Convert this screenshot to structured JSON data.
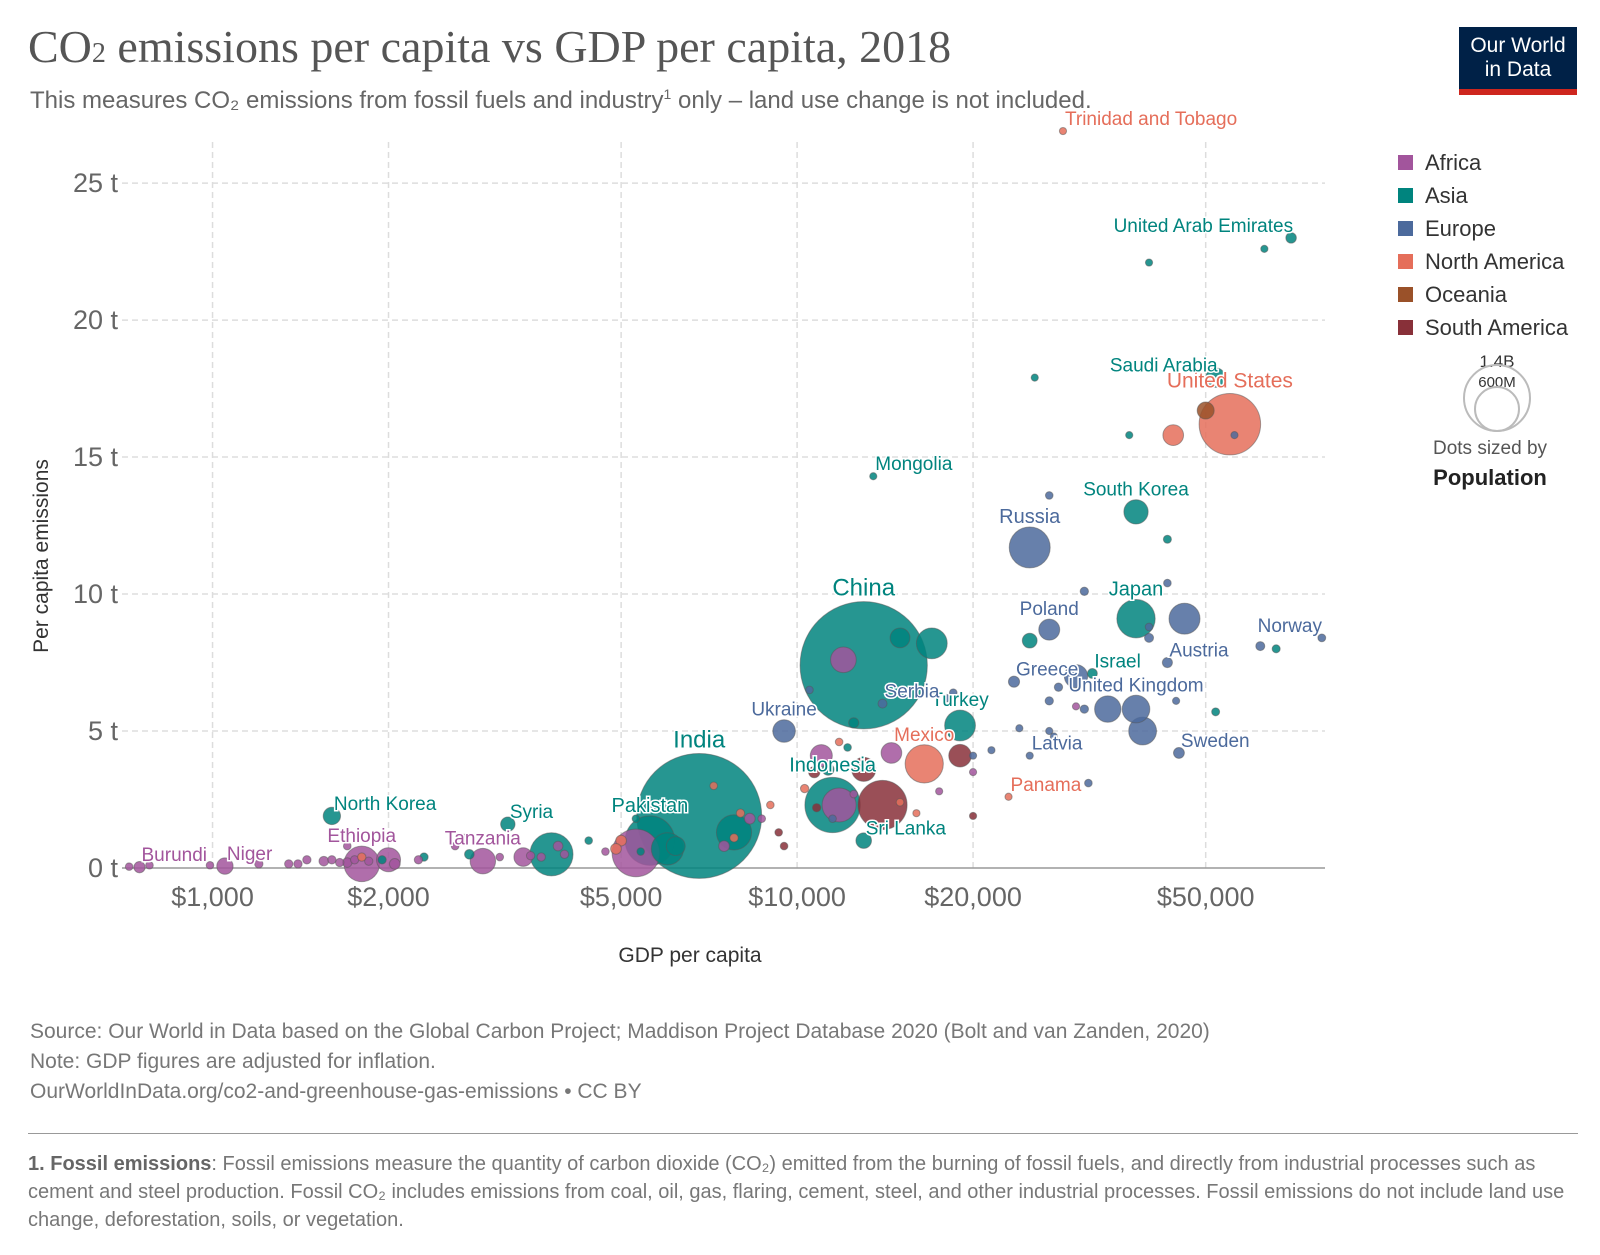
{
  "header": {
    "title": "CO₂ emissions per capita vs GDP per capita, 2018",
    "subtitle_pre": "This measures CO₂ emissions from fossil fuels and industry",
    "subtitle_sup": "1",
    "subtitle_post": " only – land use change is not included.",
    "logo_line1": "Our World",
    "logo_line2": "in Data"
  },
  "legend": {
    "items": [
      {
        "label": "Africa",
        "color": "#a2559c"
      },
      {
        "label": "Asia",
        "color": "#00847e"
      },
      {
        "label": "Europe",
        "color": "#4c6a9c"
      },
      {
        "label": "North America",
        "color": "#e56e5a"
      },
      {
        "label": "Oceania",
        "color": "#9a5129"
      },
      {
        "label": "South America",
        "color": "#883039"
      }
    ],
    "size_big": "1.4B",
    "size_small": "600M",
    "size_note": "Dots sized by",
    "size_metric": "Population"
  },
  "footer": {
    "source": "Source: Our World in Data based on the Global Carbon Project; Maddison Project Database 2020 (Bolt and van Zanden, 2020)",
    "note": "Note: GDP figures are adjusted for inflation.",
    "url": "OurWorldInData.org/co2-and-greenhouse-gas-emissions • CC BY",
    "footnote_label": "1. Fossil emissions",
    "footnote_text": ": Fossil emissions measure the quantity of carbon dioxide (CO₂) emitted from the burning of fossil fuels, and directly from industrial processes such as cement and steel production. Fossil CO₂ includes emissions from coal, oil, gas, flaring, cement, steel, and other industrial processes. Fossil emissions do not include land use change, deforestation, soils, or vegetation."
  },
  "chart_data": {
    "type": "scatter",
    "title": "CO₂ emissions per capita vs GDP per capita, 2018",
    "xlabel": "GDP per capita",
    "ylabel": "Per capita emissions",
    "xscale": "log",
    "xlim": [
      700,
      80000
    ],
    "ylim": [
      0,
      26.5
    ],
    "grid": true,
    "legend_position": "right",
    "x_ticks": [
      {
        "v": 1000,
        "label": "$1,000"
      },
      {
        "v": 2000,
        "label": "$2,000"
      },
      {
        "v": 5000,
        "label": "$5,000"
      },
      {
        "v": 10000,
        "label": "$10,000"
      },
      {
        "v": 20000,
        "label": "$20,000"
      },
      {
        "v": 50000,
        "label": "$50,000"
      }
    ],
    "y_ticks": [
      {
        "v": 0,
        "label": "0 t"
      },
      {
        "v": 5,
        "label": "5 t"
      },
      {
        "v": 10,
        "label": "10 t"
      },
      {
        "v": 15,
        "label": "15 t"
      },
      {
        "v": 20,
        "label": "20 t"
      },
      {
        "v": 25,
        "label": "25 t"
      }
    ],
    "points": [
      {
        "x": 13000,
        "y": 7.4,
        "pop": 1400,
        "region": "Asia",
        "label": "China",
        "lbl_size": 24
      },
      {
        "x": 6800,
        "y": 1.9,
        "pop": 1350,
        "region": "Asia",
        "label": "India",
        "lbl_size": 24
      },
      {
        "x": 55000,
        "y": 16.2,
        "pop": 327,
        "region": "North America",
        "label": "United States",
        "lbl_size": 21
      },
      {
        "x": 11500,
        "y": 2.3,
        "pop": 265,
        "region": "Asia",
        "label": "Indonesia",
        "lbl_size": 20
      },
      {
        "x": 5600,
        "y": 1.0,
        "pop": 212,
        "region": "Asia",
        "label": "Pakistan",
        "lbl_size": 20
      },
      {
        "x": 14000,
        "y": 2.3,
        "pop": 209,
        "region": "South America"
      },
      {
        "x": 5300,
        "y": 0.55,
        "pop": 196,
        "region": "Africa"
      },
      {
        "x": 3800,
        "y": 0.5,
        "pop": 161,
        "region": "Asia"
      },
      {
        "x": 25000,
        "y": 11.7,
        "pop": 145,
        "region": "Europe",
        "label": "Russia",
        "lbl_size": 20
      },
      {
        "x": 16500,
        "y": 3.8,
        "pop": 126,
        "region": "North America",
        "label": "Mexico",
        "lbl_size": 19
      },
      {
        "x": 38000,
        "y": 9.1,
        "pop": 127,
        "region": "Asia",
        "label": "Japan",
        "lbl_size": 20
      },
      {
        "x": 1800,
        "y": 0.15,
        "pop": 109,
        "region": "Africa",
        "label": "Ethiopia",
        "lbl_size": 19
      },
      {
        "x": 7800,
        "y": 1.3,
        "pop": 107,
        "region": "Asia"
      },
      {
        "x": 19000,
        "y": 5.2,
        "pop": 82,
        "region": "Asia",
        "label": "Turkey",
        "lbl_size": 19
      },
      {
        "x": 11800,
        "y": 2.3,
        "pop": 100,
        "region": "Africa"
      },
      {
        "x": 46000,
        "y": 9.1,
        "pop": 83,
        "region": "Europe"
      },
      {
        "x": 17000,
        "y": 8.2,
        "pop": 82,
        "region": "Asia"
      },
      {
        "x": 6000,
        "y": 0.7,
        "pop": 90,
        "region": "Asia"
      },
      {
        "x": 39000,
        "y": 5.0,
        "pop": 67,
        "region": "Europe"
      },
      {
        "x": 38000,
        "y": 5.8,
        "pop": 66,
        "region": "Europe",
        "label": "United Kingdom",
        "lbl_size": 19
      },
      {
        "x": 34000,
        "y": 5.8,
        "pop": 60,
        "region": "Europe"
      },
      {
        "x": 38000,
        "y": 13.0,
        "pop": 51,
        "region": "Asia",
        "label": "South Korea",
        "lbl_size": 19
      },
      {
        "x": 2900,
        "y": 0.25,
        "pop": 56,
        "region": "Africa",
        "label": "Tanzania",
        "lbl_size": 19
      },
      {
        "x": 13000,
        "y": 3.6,
        "pop": 50,
        "region": "South America"
      },
      {
        "x": 9500,
        "y": 5.0,
        "pop": 44,
        "region": "Europe",
        "label": "Ukraine",
        "lbl_size": 19
      },
      {
        "x": 2000,
        "y": 0.3,
        "pop": 50,
        "region": "Africa"
      },
      {
        "x": 12000,
        "y": 7.6,
        "pop": 57,
        "region": "Africa"
      },
      {
        "x": 19000,
        "y": 4.1,
        "pop": 44,
        "region": "South America"
      },
      {
        "x": 30000,
        "y": 7.0,
        "pop": 47,
        "region": "Europe"
      },
      {
        "x": 27000,
        "y": 8.7,
        "pop": 38,
        "region": "Europe",
        "label": "Poland",
        "lbl_size": 19
      },
      {
        "x": 52000,
        "y": 17.9,
        "pop": 33,
        "region": "Asia",
        "label": "Saudi Arabia",
        "lbl_size": 19
      },
      {
        "x": 11000,
        "y": 4.1,
        "pop": 42,
        "region": "Africa"
      },
      {
        "x": 14500,
        "y": 4.2,
        "pop": 37,
        "region": "Africa"
      },
      {
        "x": 15000,
        "y": 8.4,
        "pop": 34,
        "region": "Asia"
      },
      {
        "x": 3400,
        "y": 0.4,
        "pop": 30,
        "region": "Africa"
      },
      {
        "x": 1050,
        "y": 0.07,
        "pop": 23,
        "region": "Africa",
        "label": "Niger",
        "lbl_size": 19
      },
      {
        "x": 750,
        "y": 0.03,
        "pop": 11,
        "region": "Africa",
        "label": "Burundi",
        "lbl_size": 19
      },
      {
        "x": 1600,
        "y": 1.9,
        "pop": 26,
        "region": "Asia",
        "label": "North Korea",
        "lbl_size": 19
      },
      {
        "x": 3200,
        "y": 1.6,
        "pop": 18,
        "region": "Asia",
        "label": "Syria",
        "lbl_size": 19
      },
      {
        "x": 13000,
        "y": 1.0,
        "pop": 21,
        "region": "Asia",
        "label": "Sri Lanka",
        "lbl_size": 19
      },
      {
        "x": 23000,
        "y": 2.6,
        "pop": 4,
        "region": "North America",
        "label": "Panama",
        "lbl_size": 19
      },
      {
        "x": 28500,
        "y": 26.9,
        "pop": 1.4,
        "region": "North America",
        "label": "Trinidad and Tobago",
        "lbl_size": 19
      },
      {
        "x": 70000,
        "y": 23.0,
        "pop": 9.6,
        "region": "Asia",
        "label": "United Arab Emirates",
        "lbl_size": 19
      },
      {
        "x": 13500,
        "y": 14.3,
        "pop": 3.2,
        "region": "Asia",
        "label": "Mongolia",
        "lbl_size": 19
      },
      {
        "x": 79000,
        "y": 8.4,
        "pop": 5.3,
        "region": "Europe",
        "label": "Norway",
        "lbl_size": 19
      },
      {
        "x": 43000,
        "y": 7.5,
        "pop": 8.8,
        "region": "Europe",
        "label": "Austria",
        "lbl_size": 19
      },
      {
        "x": 32000,
        "y": 7.1,
        "pop": 8.4,
        "region": "Asia",
        "label": "Israel",
        "lbl_size": 19
      },
      {
        "x": 23500,
        "y": 6.8,
        "pop": 10.7,
        "region": "Europe",
        "label": "Greece",
        "lbl_size": 19
      },
      {
        "x": 14000,
        "y": 6.0,
        "pop": 7,
        "region": "Europe",
        "label": "Serbia",
        "lbl_size": 19
      },
      {
        "x": 25000,
        "y": 4.1,
        "pop": 1.9,
        "region": "Europe",
        "label": "Latvia",
        "lbl_size": 19
      },
      {
        "x": 45000,
        "y": 4.2,
        "pop": 10.2,
        "region": "Europe",
        "label": "Sweden",
        "lbl_size": 19
      },
      {
        "x": 40000,
        "y": 22.1,
        "pop": 4.1,
        "region": "Asia"
      },
      {
        "x": 63000,
        "y": 22.6,
        "pop": 2.8,
        "region": "Asia"
      },
      {
        "x": 25500,
        "y": 17.9,
        "pop": 4,
        "region": "Asia"
      },
      {
        "x": 37000,
        "y": 15.8,
        "pop": 3,
        "region": "Asia"
      },
      {
        "x": 44000,
        "y": 15.8,
        "pop": 37,
        "region": "North America"
      },
      {
        "x": 50000,
        "y": 16.7,
        "pop": 25,
        "region": "Oceania"
      },
      {
        "x": 56000,
        "y": 15.8,
        "pop": 4,
        "region": "Europe"
      },
      {
        "x": 27000,
        "y": 13.6,
        "pop": 5,
        "region": "Europe"
      },
      {
        "x": 43000,
        "y": 12.0,
        "pop": 5.6,
        "region": "Asia"
      },
      {
        "x": 43000,
        "y": 10.4,
        "pop": 5,
        "region": "Europe"
      },
      {
        "x": 31000,
        "y": 10.1,
        "pop": 6,
        "region": "Europe"
      },
      {
        "x": 25000,
        "y": 8.3,
        "pop": 19,
        "region": "Asia"
      },
      {
        "x": 40000,
        "y": 8.4,
        "pop": 7,
        "region": "Europe"
      },
      {
        "x": 40000,
        "y": 8.8,
        "pop": 5,
        "region": "Europe"
      },
      {
        "x": 62000,
        "y": 8.1,
        "pop": 7,
        "region": "Europe"
      },
      {
        "x": 66000,
        "y": 8.0,
        "pop": 5.6,
        "region": "Asia"
      },
      {
        "x": 28000,
        "y": 6.6,
        "pop": 6,
        "region": "Europe"
      },
      {
        "x": 27000,
        "y": 6.1,
        "pop": 6,
        "region": "Europe"
      },
      {
        "x": 18500,
        "y": 6.4,
        "pop": 5,
        "region": "Europe"
      },
      {
        "x": 18000,
        "y": 6.2,
        "pop": 5,
        "region": "Europe"
      },
      {
        "x": 30000,
        "y": 5.9,
        "pop": 4,
        "region": "Africa"
      },
      {
        "x": 31000,
        "y": 5.8,
        "pop": 6,
        "region": "Europe"
      },
      {
        "x": 52000,
        "y": 5.7,
        "pop": 5.5,
        "region": "Asia"
      },
      {
        "x": 44500,
        "y": 6.1,
        "pop": 4,
        "region": "Europe"
      },
      {
        "x": 27000,
        "y": 5.0,
        "pop": 4,
        "region": "Europe"
      },
      {
        "x": 24000,
        "y": 5.1,
        "pop": 4,
        "region": "Europe"
      },
      {
        "x": 27500,
        "y": 4.8,
        "pop": 4,
        "region": "Europe"
      },
      {
        "x": 31500,
        "y": 3.1,
        "pop": 5,
        "region": "Europe"
      },
      {
        "x": 10500,
        "y": 6.5,
        "pop": 5,
        "region": "Europe"
      },
      {
        "x": 12500,
        "y": 5.3,
        "pop": 9,
        "region": "Asia"
      },
      {
        "x": 20000,
        "y": 4.1,
        "pop": 4,
        "region": "Europe"
      },
      {
        "x": 21500,
        "y": 4.3,
        "pop": 4,
        "region": "Europe"
      },
      {
        "x": 20000,
        "y": 3.5,
        "pop": 4,
        "region": "Africa"
      },
      {
        "x": 11300,
        "y": 3.6,
        "pop": 12,
        "region": "Asia"
      },
      {
        "x": 12200,
        "y": 4.4,
        "pop": 5,
        "region": "Asia"
      },
      {
        "x": 11800,
        "y": 4.6,
        "pop": 5,
        "region": "North America"
      },
      {
        "x": 10700,
        "y": 3.5,
        "pop": 11,
        "region": "South America"
      },
      {
        "x": 10300,
        "y": 2.9,
        "pop": 6,
        "region": "North America"
      },
      {
        "x": 12500,
        "y": 2.7,
        "pop": 5,
        "region": "Africa"
      },
      {
        "x": 10800,
        "y": 2.2,
        "pop": 6,
        "region": "South America"
      },
      {
        "x": 11500,
        "y": 1.8,
        "pop": 5,
        "region": "Europe"
      },
      {
        "x": 15000,
        "y": 2.4,
        "pop": 5,
        "region": "North America"
      },
      {
        "x": 16000,
        "y": 2.0,
        "pop": 4,
        "region": "North America"
      },
      {
        "x": 20000,
        "y": 1.9,
        "pop": 4,
        "region": "South America"
      },
      {
        "x": 17500,
        "y": 2.8,
        "pop": 4,
        "region": "Africa"
      },
      {
        "x": 9500,
        "y": 0.8,
        "pop": 5,
        "region": "South America"
      },
      {
        "x": 7200,
        "y": 3.0,
        "pop": 5,
        "region": "North America"
      },
      {
        "x": 9000,
        "y": 2.3,
        "pop": 5,
        "region": "North America"
      },
      {
        "x": 8000,
        "y": 2.0,
        "pop": 6,
        "region": "North America"
      },
      {
        "x": 8300,
        "y": 1.8,
        "pop": 10,
        "region": "Africa"
      },
      {
        "x": 7800,
        "y": 1.1,
        "pop": 6,
        "region": "North America"
      },
      {
        "x": 7500,
        "y": 0.8,
        "pop": 10,
        "region": "Africa"
      },
      {
        "x": 8700,
        "y": 1.8,
        "pop": 5,
        "region": "Africa"
      },
      {
        "x": 9300,
        "y": 1.3,
        "pop": 5,
        "region": "South America"
      },
      {
        "x": 4400,
        "y": 1.0,
        "pop": 5,
        "region": "Asia"
      },
      {
        "x": 5300,
        "y": 1.8,
        "pop": 5,
        "region": "Asia"
      },
      {
        "x": 5000,
        "y": 1.0,
        "pop": 10,
        "region": "North America"
      },
      {
        "x": 4900,
        "y": 0.7,
        "pop": 10,
        "region": "North America"
      },
      {
        "x": 6200,
        "y": 0.8,
        "pop": 31,
        "region": "Asia"
      },
      {
        "x": 2700,
        "y": 1.1,
        "pop": 5,
        "region": "Africa"
      },
      {
        "x": 2750,
        "y": 0.5,
        "pop": 8,
        "region": "Asia"
      },
      {
        "x": 2600,
        "y": 0.8,
        "pop": 5,
        "region": "Africa"
      },
      {
        "x": 3900,
        "y": 0.8,
        "pop": 8,
        "region": "Africa"
      },
      {
        "x": 3500,
        "y": 0.45,
        "pop": 6,
        "region": "Africa"
      },
      {
        "x": 3650,
        "y": 0.4,
        "pop": 6,
        "region": "Africa"
      },
      {
        "x": 2300,
        "y": 0.4,
        "pop": 6,
        "region": "Asia"
      },
      {
        "x": 1950,
        "y": 0.3,
        "pop": 6,
        "region": "Asia"
      },
      {
        "x": 1700,
        "y": 0.8,
        "pop": 5,
        "region": "Africa"
      },
      {
        "x": 1550,
        "y": 0.25,
        "pop": 8,
        "region": "Africa"
      },
      {
        "x": 1700,
        "y": 0.2,
        "pop": 8,
        "region": "Africa"
      },
      {
        "x": 1450,
        "y": 0.3,
        "pop": 6,
        "region": "Africa"
      },
      {
        "x": 1400,
        "y": 0.15,
        "pop": 6,
        "region": "Africa"
      },
      {
        "x": 1750,
        "y": 0.3,
        "pop": 6,
        "region": "Africa"
      },
      {
        "x": 1850,
        "y": 0.25,
        "pop": 6,
        "region": "Africa"
      },
      {
        "x": 2050,
        "y": 0.15,
        "pop": 10,
        "region": "Africa"
      },
      {
        "x": 1650,
        "y": 0.2,
        "pop": 6,
        "region": "Africa"
      },
      {
        "x": 1200,
        "y": 0.15,
        "pop": 6,
        "region": "Africa"
      },
      {
        "x": 990,
        "y": 0.1,
        "pop": 5,
        "region": "Africa"
      },
      {
        "x": 720,
        "y": 0.05,
        "pop": 5,
        "region": "Africa"
      },
      {
        "x": 780,
        "y": 0.1,
        "pop": 5,
        "region": "Africa"
      },
      {
        "x": 1350,
        "y": 0.15,
        "pop": 6,
        "region": "Africa"
      },
      {
        "x": 2250,
        "y": 0.3,
        "pop": 6,
        "region": "Africa"
      },
      {
        "x": 3100,
        "y": 0.4,
        "pop": 5,
        "region": "Africa"
      },
      {
        "x": 4000,
        "y": 0.5,
        "pop": 6,
        "region": "Africa"
      },
      {
        "x": 4700,
        "y": 0.6,
        "pop": 5,
        "region": "Africa"
      },
      {
        "x": 1600,
        "y": 0.3,
        "pop": 6,
        "region": "Africa"
      },
      {
        "x": 1800,
        "y": 0.4,
        "pop": 6,
        "region": "North America"
      },
      {
        "x": 5400,
        "y": 0.6,
        "pop": 5,
        "region": "Asia"
      }
    ]
  }
}
